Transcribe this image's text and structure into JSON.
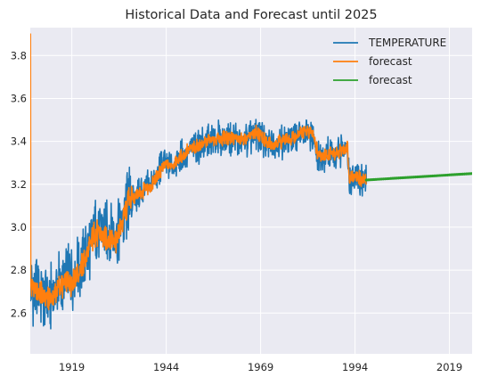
{
  "chart_data": {
    "type": "line",
    "title": "Historical Data and Forecast until 2025",
    "xlabel": "",
    "ylabel": "",
    "xlim": [
      1908.0,
      2025.0
    ],
    "ylim": [
      2.41,
      3.93
    ],
    "x_ticks": [
      1919,
      1944,
      1969,
      1994,
      2019
    ],
    "y_ticks": [
      2.6,
      2.8,
      3.0,
      3.2,
      3.4,
      3.6,
      3.8
    ],
    "grid": true,
    "legend_position": "top-right",
    "series": [
      {
        "name": "TEMPERATURE",
        "color": "#1f77b4",
        "style": "noisy monthly series",
        "x": [
          1908.0,
          1910.0,
          1913.0,
          1916.0,
          1919.0,
          1922.0,
          1925.0,
          1928.0,
          1931.0,
          1934.0,
          1937.0,
          1940.0,
          1943.0,
          1946.0,
          1950.0,
          1955.0,
          1960.0,
          1965.0,
          1968.0,
          1971.0,
          1974.0,
          1977.0,
          1980.0,
          1983.0,
          1984.2,
          1986.0,
          1989.0,
          1992.0,
          1992.4,
          1994.0,
          1996.0,
          1997.0
        ],
        "y": [
          2.68,
          2.72,
          2.66,
          2.74,
          2.76,
          2.84,
          2.98,
          2.96,
          2.95,
          3.12,
          3.16,
          3.2,
          3.29,
          3.3,
          3.36,
          3.4,
          3.42,
          3.4,
          3.44,
          3.38,
          3.4,
          3.41,
          3.44,
          3.43,
          3.33,
          3.34,
          3.34,
          3.38,
          3.23,
          3.24,
          3.22,
          3.21
        ]
      },
      {
        "name": "forecast",
        "color": "#ff7f0e",
        "style": "fitted series",
        "x": [
          1908.0,
          1908.05,
          1908.12,
          1910.0,
          1913.0,
          1916.0,
          1919.0,
          1922.0,
          1925.0,
          1928.0,
          1931.0,
          1934.0,
          1937.0,
          1940.0,
          1943.0,
          1946.0,
          1950.0,
          1955.0,
          1960.0,
          1965.0,
          1968.0,
          1971.0,
          1974.0,
          1977.0,
          1980.0,
          1983.0,
          1984.2,
          1986.0,
          1989.0,
          1992.0,
          1992.4,
          1994.0,
          1996.0,
          1997.0
        ],
        "y": [
          3.9,
          3.9,
          2.72,
          2.71,
          2.66,
          2.73,
          2.75,
          2.83,
          2.97,
          2.95,
          2.95,
          3.12,
          3.16,
          3.19,
          3.28,
          3.3,
          3.36,
          3.4,
          3.42,
          3.41,
          3.44,
          3.39,
          3.4,
          3.41,
          3.44,
          3.44,
          3.34,
          3.34,
          3.34,
          3.38,
          3.24,
          3.24,
          3.22,
          3.22
        ]
      },
      {
        "name": "forecast",
        "color": "#2ca02c",
        "style": "forecast",
        "x": [
          1997.0,
          2025.0
        ],
        "y": [
          3.22,
          3.25
        ]
      }
    ]
  }
}
